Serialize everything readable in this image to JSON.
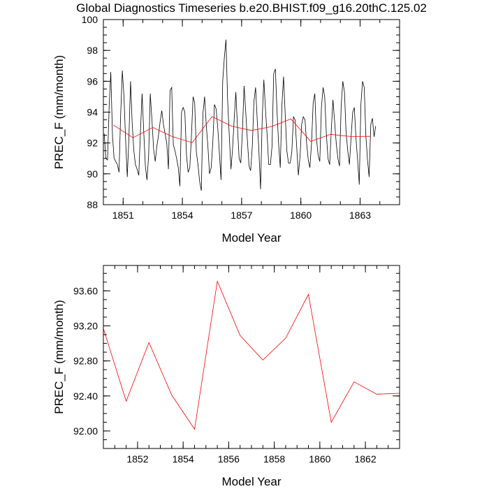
{
  "title": "Global Diagnostics Timeseries b.e20.BHIST.f09_g16.20thC.125.02",
  "chart_data": [
    {
      "type": "line",
      "xlabel": "Model Year",
      "ylabel": "PREC_F (mm/month)",
      "xlim": [
        1850,
        1865
      ],
      "ylim": [
        88,
        100
      ],
      "xticks": [
        1851,
        1854,
        1857,
        1860,
        1863
      ],
      "xtick_labels": [
        "1851",
        "1854",
        "1857",
        "1860",
        "1863"
      ],
      "yticks": [
        88,
        90,
        92,
        94,
        96,
        98,
        100
      ],
      "ytick_labels": [
        "88",
        "90",
        "92",
        "94",
        "96",
        "98",
        "100"
      ],
      "grid": false,
      "series": [
        {
          "color": "#000000",
          "x_start": 1850.042,
          "x_step": 0.08333,
          "values": [
            92.6,
            91.0,
            90.9,
            94.4,
            96.6,
            92.5,
            91.0,
            90.8,
            90.6,
            90.1,
            93.8,
            96.7,
            95.0,
            92.2,
            89.8,
            92.3,
            96.0,
            93.3,
            91.5,
            90.6,
            90.3,
            89.9,
            92.7,
            95.2,
            92.8,
            90.5,
            89.6,
            91.2,
            95.2,
            93.5,
            91.6,
            90.8,
            91.8,
            92.5,
            93.4,
            94.1,
            93.2,
            92.6,
            92.0,
            90.3,
            95.4,
            95.6,
            91.9,
            91.5,
            91.0,
            90.4,
            89.2,
            94.0,
            94.3,
            94.0,
            91.2,
            90.1,
            90.4,
            92.4,
            95.0,
            94.6,
            91.4,
            90.6,
            89.5,
            88.9,
            93.9,
            95.0,
            93.2,
            91.8,
            90.0,
            90.4,
            92.0,
            94.5,
            94.2,
            93.0,
            91.3,
            89.6,
            96.0,
            97.5,
            98.7,
            94.8,
            92.5,
            90.3,
            91.6,
            93.6,
            95.3,
            93.0,
            91.0,
            90.7,
            92.7,
            95.7,
            94.0,
            92.2,
            90.5,
            90.2,
            91.8,
            94.7,
            95.6,
            93.5,
            91.5,
            89.0,
            93.5,
            96.1,
            94.2,
            92.5,
            90.6,
            90.6,
            91.8,
            96.5,
            96.8,
            94.1,
            91.9,
            90.4,
            94.5,
            96.3,
            93.8,
            91.5,
            90.7,
            90.7,
            91.4,
            93.7,
            93.5,
            91.7,
            89.9,
            91.1,
            93.2,
            93.7,
            93.5,
            92.0,
            90.9,
            90.4,
            92.0,
            94.6,
            95.2,
            92.3,
            91.2,
            90.8,
            94.3,
            95.6,
            95.0,
            92.6,
            91.0,
            90.6,
            92.8,
            94.8,
            93.4,
            92.0,
            91.0,
            90.5,
            94.4,
            96.0,
            95.3,
            92.7,
            91.5,
            90.6,
            92.3,
            94.0,
            94.3,
            92.3,
            90.9,
            89.3,
            94.5,
            96.0,
            95.6,
            92.5,
            90.9,
            89.8,
            93.2,
            93.6,
            92.4,
            93.1
          ]
        },
        {
          "color": "#ff0000",
          "x": [
            1850.5,
            1851.5,
            1852.5,
            1853.5,
            1854.5,
            1855.5,
            1856.5,
            1857.5,
            1858.5,
            1859.5,
            1860.5,
            1861.5,
            1862.5,
            1863.5
          ],
          "values": [
            93.17,
            92.34,
            93.01,
            92.41,
            92.02,
            93.71,
            93.09,
            92.81,
            93.06,
            93.56,
            92.1,
            92.56,
            92.42,
            92.43
          ]
        }
      ]
    },
    {
      "type": "line",
      "xlabel": "Model Year",
      "ylabel": "PREC_F (mm/month)",
      "xlim": [
        1850.5,
        1863.5
      ],
      "ylim": [
        91.8,
        93.89
      ],
      "xticks": [
        1852,
        1854,
        1856,
        1858,
        1860,
        1862
      ],
      "xtick_labels": [
        "1852",
        "1854",
        "1856",
        "1858",
        "1860",
        "1862"
      ],
      "yticks": [
        92.0,
        92.4,
        92.8,
        93.2,
        93.6
      ],
      "ytick_labels": [
        "92.00",
        "92.40",
        "92.80",
        "93.20",
        "93.60"
      ],
      "grid": false,
      "series": [
        {
          "color": "#ff0000",
          "x": [
            1850.5,
            1851.5,
            1852.5,
            1853.5,
            1854.5,
            1855.5,
            1856.5,
            1857.5,
            1858.5,
            1859.5,
            1860.5,
            1861.5,
            1862.5,
            1863.5
          ],
          "values": [
            93.17,
            92.34,
            93.01,
            92.41,
            92.02,
            93.71,
            93.09,
            92.81,
            93.06,
            93.56,
            92.1,
            92.56,
            92.42,
            92.43
          ]
        }
      ]
    }
  ]
}
